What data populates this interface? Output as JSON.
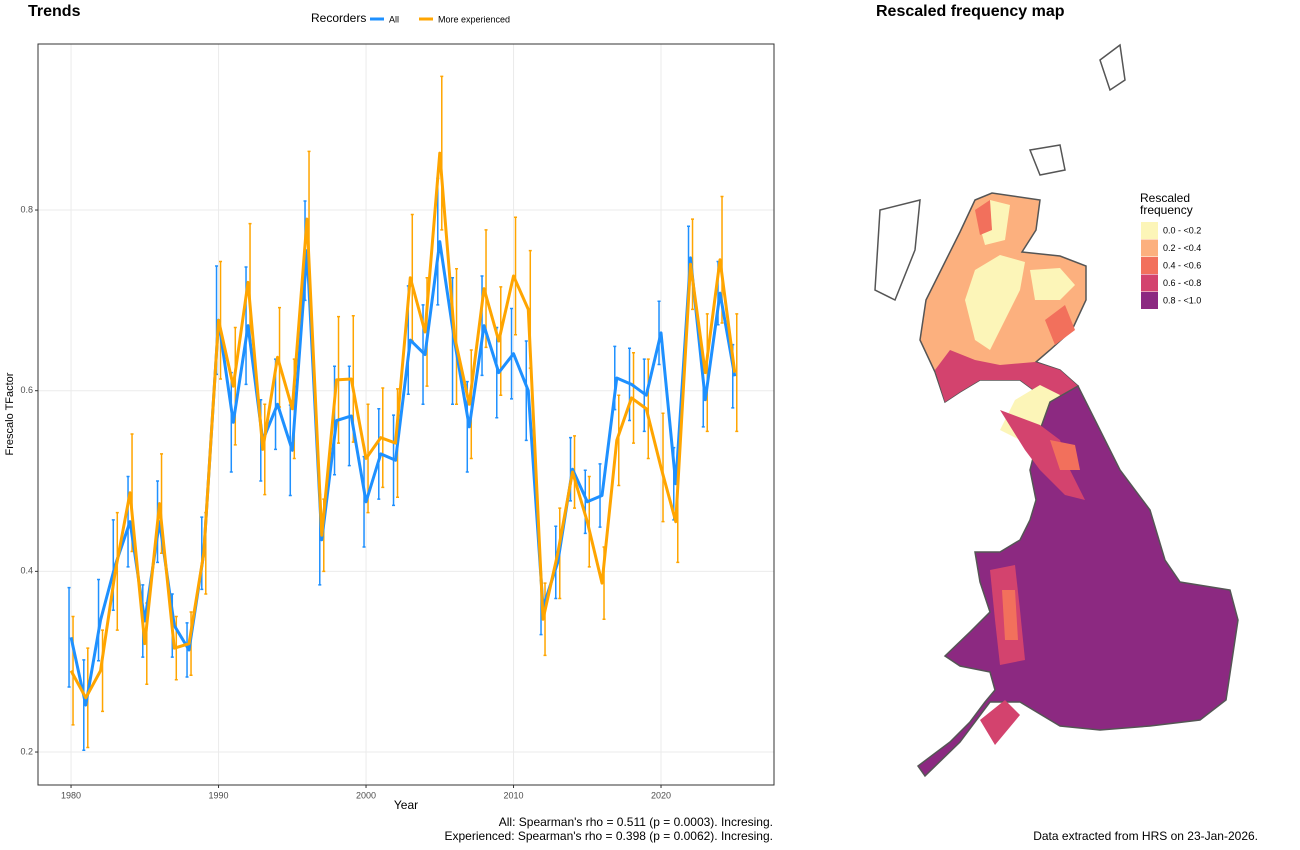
{
  "chart_data": [
    {
      "type": "line",
      "title": "Trends",
      "x_label": "Year",
      "y_label": "Frescalo TFactor",
      "legend_title": "Recorders",
      "legend_position": "top",
      "x": [
        1980,
        1981,
        1982,
        1983,
        1984,
        1985,
        1986,
        1987,
        1988,
        1989,
        1990,
        1991,
        1992,
        1993,
        1994,
        1995,
        1996,
        1997,
        1998,
        1999,
        2000,
        2001,
        2002,
        2003,
        2004,
        2005,
        2006,
        2007,
        2008,
        2009,
        2010,
        2011,
        2012,
        2013,
        2014,
        2015,
        2016,
        2017,
        2018,
        2019,
        2020,
        2021,
        2022,
        2023,
        2024,
        2025
      ],
      "series": [
        {
          "name": "All",
          "color": "#1e90ff",
          "values": [
            0.327,
            0.252,
            0.346,
            0.407,
            0.455,
            0.345,
            0.455,
            0.34,
            0.313,
            0.42,
            0.678,
            0.565,
            0.672,
            0.545,
            0.585,
            0.534,
            0.755,
            0.435,
            0.567,
            0.572,
            0.477,
            0.53,
            0.523,
            0.656,
            0.64,
            0.765,
            0.655,
            0.56,
            0.672,
            0.62,
            0.641,
            0.6,
            0.36,
            0.41,
            0.513,
            0.477,
            0.484,
            0.614,
            0.607,
            0.595,
            0.664,
            0.497,
            0.747,
            0.59,
            0.708,
            0.616
          ],
          "errors": [
            0.055,
            0.05,
            0.045,
            0.05,
            0.05,
            0.04,
            0.045,
            0.035,
            0.03,
            0.04,
            0.06,
            0.055,
            0.065,
            0.045,
            0.05,
            0.05,
            0.055,
            0.05,
            0.06,
            0.055,
            0.05,
            0.05,
            0.05,
            0.06,
            0.055,
            0.07,
            0.07,
            0.05,
            0.055,
            0.05,
            0.05,
            0.055,
            0.03,
            0.04,
            0.035,
            0.035,
            0.035,
            0.035,
            0.04,
            0.04,
            0.035,
            0.04,
            0.035,
            0.03,
            0.035,
            0.035
          ]
        },
        {
          "name": "More experienced",
          "color": "#ffa500",
          "values": [
            0.29,
            0.26,
            0.29,
            0.4,
            0.487,
            0.32,
            0.475,
            0.315,
            0.32,
            0.42,
            0.678,
            0.605,
            0.72,
            0.535,
            0.637,
            0.58,
            0.79,
            0.44,
            0.612,
            0.613,
            0.525,
            0.548,
            0.542,
            0.725,
            0.665,
            0.863,
            0.66,
            0.585,
            0.713,
            0.655,
            0.727,
            0.69,
            0.347,
            0.42,
            0.51,
            0.455,
            0.387,
            0.545,
            0.592,
            0.58,
            0.515,
            0.455,
            0.74,
            0.62,
            0.745,
            0.62
          ],
          "errors": [
            0.06,
            0.055,
            0.045,
            0.065,
            0.065,
            0.045,
            0.055,
            0.035,
            0.035,
            0.045,
            0.065,
            0.065,
            0.065,
            0.05,
            0.055,
            0.055,
            0.075,
            0.04,
            0.07,
            0.07,
            0.06,
            0.055,
            0.06,
            0.07,
            0.06,
            0.085,
            0.075,
            0.06,
            0.065,
            0.06,
            0.065,
            0.065,
            0.04,
            0.05,
            0.04,
            0.05,
            0.04,
            0.05,
            0.05,
            0.055,
            0.06,
            0.045,
            0.05,
            0.065,
            0.07,
            0.065
          ]
        }
      ],
      "xlim": [
        1977.76,
        2027.66
      ],
      "xticks": [
        1980,
        1990,
        2000,
        2010,
        2020
      ],
      "ylim": [
        0.1635,
        0.9838
      ],
      "yticks": [
        0.2,
        0.4,
        0.6,
        0.8
      ],
      "grid": true,
      "annotations": [
        "All: Spearman's rho = 0.511 (p = 0.0003). Incresing.",
        "Experienced: Spearman's rho = 0.398 (p = 0.0062). Incresing."
      ]
    }
  ],
  "map": {
    "title": "Rescaled frequency map",
    "legend_title": [
      "Rescaled",
      "frequency"
    ],
    "legend": [
      {
        "label": "0.0 - <0.2",
        "color": "#fcf5b8"
      },
      {
        "label": "0.2 - <0.4",
        "color": "#fcb07e"
      },
      {
        "label": "0.4 - <0.6",
        "color": "#f2705c"
      },
      {
        "label": "0.6 - <0.8",
        "color": "#d3436e"
      },
      {
        "label": "0.8 - <1.0",
        "color": "#8c2981"
      }
    ],
    "footer": "Data extracted from HRS on 23-Jan-2026."
  }
}
